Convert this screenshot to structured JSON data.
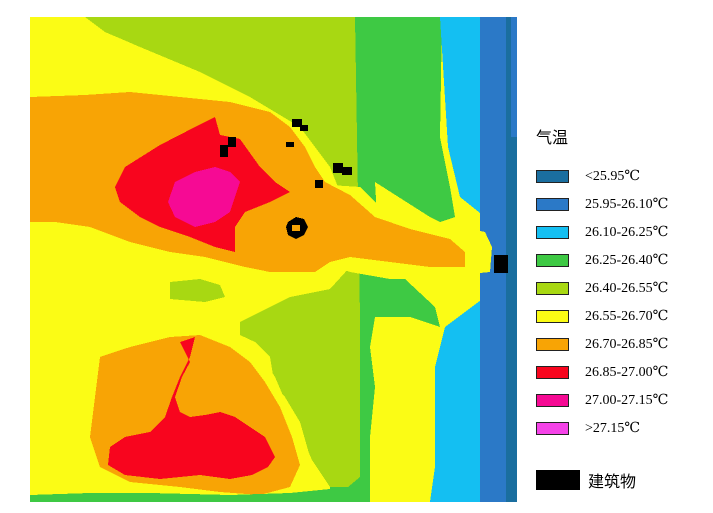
{
  "legend": {
    "title": "气温",
    "classes": [
      {
        "label": "<25.95℃",
        "color": "#1a6e9f"
      },
      {
        "label": "25.95-26.10℃",
        "color": "#2b79c7"
      },
      {
        "label": "26.10-26.25℃",
        "color": "#14bff2"
      },
      {
        "label": "26.25-26.40℃",
        "color": "#3ec944"
      },
      {
        "label": "26.40-26.55℃",
        "color": "#a8d812"
      },
      {
        "label": "26.55-26.70℃",
        "color": "#fbfc15"
      },
      {
        "label": "26.70-26.85℃",
        "color": "#f8a405"
      },
      {
        "label": "26.85-27.00℃",
        "color": "#f8051e"
      },
      {
        "label": "27.00-27.15℃",
        "color": "#f60a94"
      },
      {
        "label": ">27.15℃",
        "color": "#f543e8"
      }
    ],
    "building": {
      "label": "建筑物",
      "color": "#000000"
    }
  }
}
